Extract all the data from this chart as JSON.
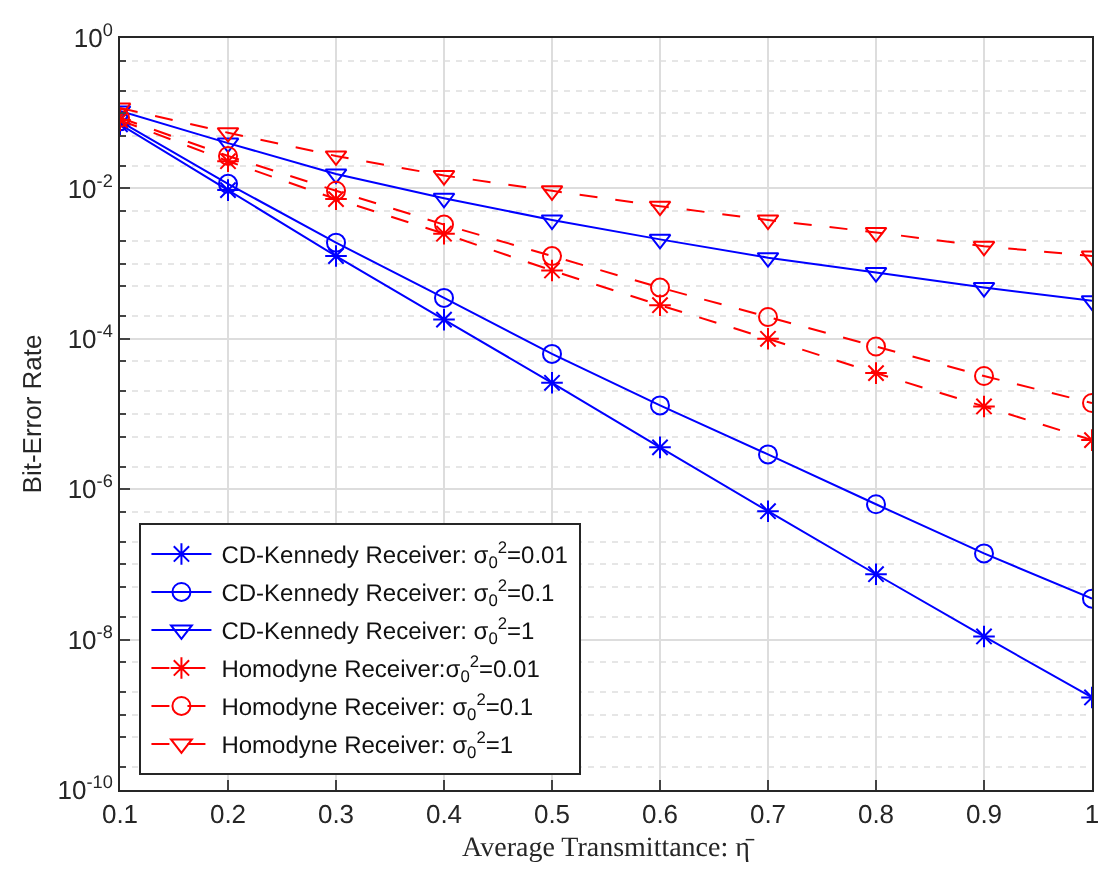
{
  "chart_data": {
    "type": "line",
    "xlabel": "Average Transmittance: η̄",
    "ylabel": "Bit-Error Rate",
    "x": [
      0.1,
      0.2,
      0.3,
      0.4,
      0.5,
      0.6,
      0.7,
      0.8,
      0.9,
      1.0
    ],
    "series": [
      {
        "name": "CD-Kennedy Receiver: σ$_{0}$$^{2}$=0.01",
        "color": "#0000ff",
        "marker": "cross",
        "line_style": "solid",
        "values": [
          0.071,
          0.0095,
          0.00126,
          0.00018,
          2.6e-05,
          3.6e-06,
          5.1e-07,
          7.4e-08,
          1.1e-08,
          1.7e-09
        ]
      },
      {
        "name": "CD-Kennedy Receiver: σ$_{0}$$^{2}$=0.1",
        "color": "#0000ff",
        "marker": "circle",
        "line_style": "solid",
        "values": [
          0.078,
          0.0115,
          0.0019,
          0.00035,
          6.3e-05,
          1.3e-05,
          2.9e-06,
          6.3e-07,
          1.4e-07,
          3.5e-08
        ]
      },
      {
        "name": "CD-Kennedy Receiver: σ$_{0}$$^{2}$=1",
        "color": "#0000ff",
        "marker": "triangle",
        "line_style": "solid",
        "values": [
          0.107,
          0.04,
          0.0155,
          0.0074,
          0.0038,
          0.0021,
          0.0012,
          0.00076,
          0.00048,
          0.00032
        ]
      },
      {
        "name": "Homodyne Receiver:σ$_{0}$$^{2}$=0.01",
        "color": "#ff0000",
        "marker": "cross",
        "line_style": "dashed",
        "values": [
          0.081,
          0.023,
          0.0072,
          0.0025,
          0.00081,
          0.00028,
          0.0001,
          3.5e-05,
          1.26e-05,
          4.5e-06
        ]
      },
      {
        "name": "Homodyne Receiver: σ$_{0}$$^{2}$=0.1",
        "color": "#ff0000",
        "marker": "circle",
        "line_style": "dashed",
        "values": [
          0.087,
          0.027,
          0.0093,
          0.0033,
          0.00126,
          0.00048,
          0.000195,
          7.9e-05,
          3.2e-05,
          1.4e-05
        ]
      },
      {
        "name": "Homodyne Receiver: σ$_{0}$$^{2}$=1",
        "color": "#ff0000",
        "marker": "triangle",
        "line_style": "dashed",
        "values": [
          0.117,
          0.055,
          0.027,
          0.0148,
          0.0093,
          0.0058,
          0.0038,
          0.0026,
          0.0017,
          0.00126
        ]
      }
    ],
    "xlim": [
      0.1,
      1.0
    ],
    "xticks": [
      0.1,
      0.2,
      0.3,
      0.4,
      0.5,
      0.6,
      0.7,
      0.8,
      0.9,
      1
    ],
    "ylim": [
      1e-10,
      1
    ],
    "log": "y",
    "yticks": [
      {
        "value": 1e-10,
        "label": "10$^{-10}$"
      },
      {
        "value": 1e-08,
        "label": "10$^{-8}$"
      },
      {
        "value": 1e-06,
        "label": "10$^{-6}$"
      },
      {
        "value": 0.0001,
        "label": "10$^{-4}$"
      },
      {
        "value": 0.01,
        "label": "10$^{-2}$"
      },
      {
        "value": 1,
        "label": "10$^{0}$"
      }
    ],
    "grid": true,
    "legend": "bottom left"
  }
}
